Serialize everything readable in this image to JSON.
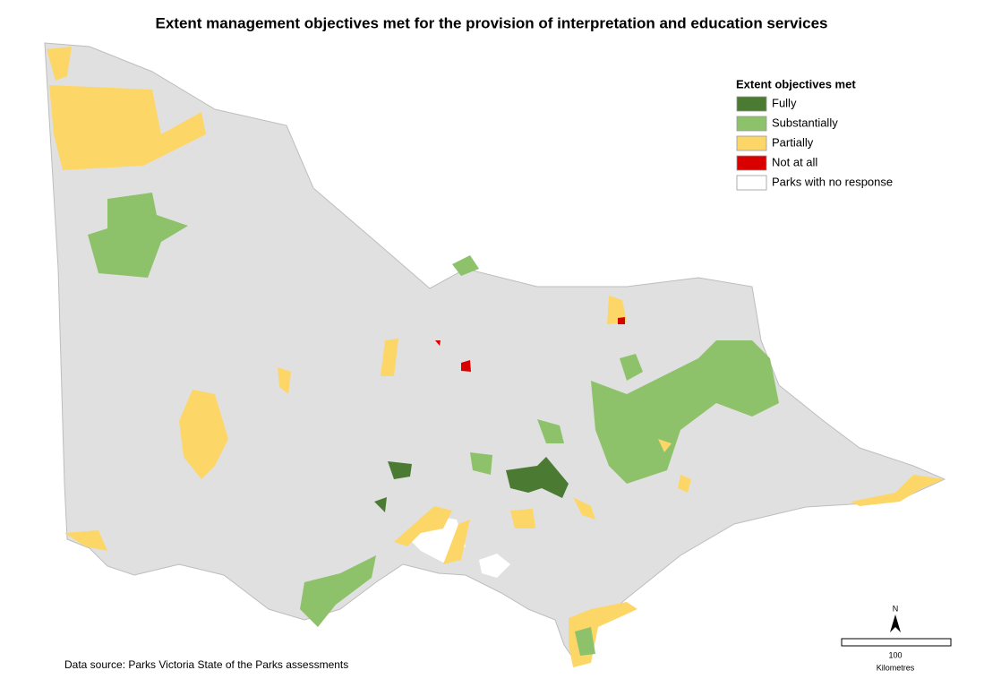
{
  "title": "Extent management objectives met for the provision of interpretation and education services",
  "legend": {
    "title": "Extent objectives met",
    "items": [
      {
        "label": "Fully",
        "color": "#4b7a32"
      },
      {
        "label": "Substantially",
        "color": "#8dc26a"
      },
      {
        "label": "Partially",
        "color": "#fdd668"
      },
      {
        "label": "Not at all",
        "color": "#d90000"
      },
      {
        "label": "Parks with no response",
        "color": "#ffffff"
      }
    ]
  },
  "source": "Data source: Parks Victoria State of the Parks assessments",
  "scale": {
    "value": "100",
    "unit": "Kilometres"
  },
  "north": "N"
}
